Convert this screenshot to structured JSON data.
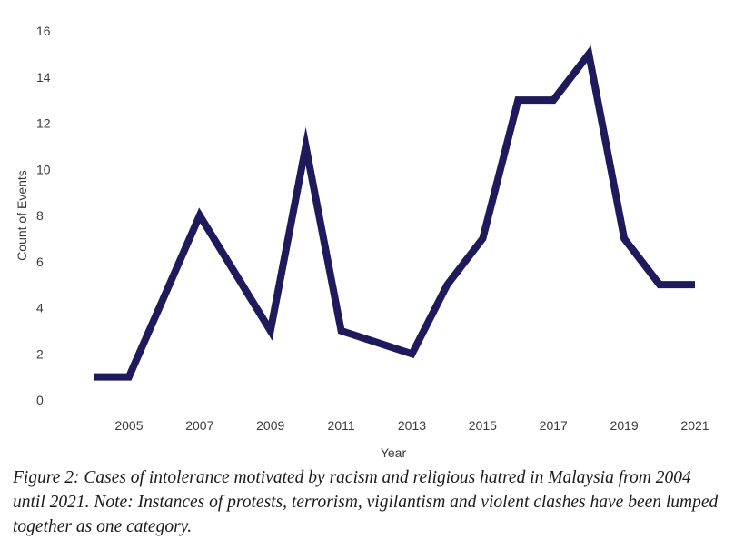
{
  "chart_data": {
    "type": "line",
    "x": [
      2004,
      2005,
      2006,
      2007,
      2008,
      2009,
      2010,
      2011,
      2012,
      2013,
      2014,
      2015,
      2016,
      2017,
      2018,
      2019,
      2020,
      2021
    ],
    "series": [
      {
        "values": [
          1,
          1,
          4.5,
          8,
          5.5,
          3,
          11,
          3,
          2.5,
          2,
          5,
          7,
          13,
          13,
          15,
          7,
          5,
          5
        ]
      }
    ],
    "xticks": [
      "2005",
      "2007",
      "2009",
      "2011",
      "2013",
      "2015",
      "2017",
      "2019",
      "2021"
    ],
    "yticks": [
      "0",
      "2",
      "4",
      "6",
      "8",
      "10",
      "12",
      "14",
      "16"
    ],
    "xlabel": "Year",
    "ylabel": "Count of Events",
    "ylim": [
      0,
      16
    ],
    "xlim": [
      2004,
      2021
    ],
    "grid": false,
    "line_color": "#1e1a5c"
  },
  "caption": "Figure 2: Cases of intolerance motivated by racism and religious hatred in Malaysia from 2004 until 2021. Note: Instances of protests, terrorism, vigilantism and violent clashes have been lumped together as one category."
}
